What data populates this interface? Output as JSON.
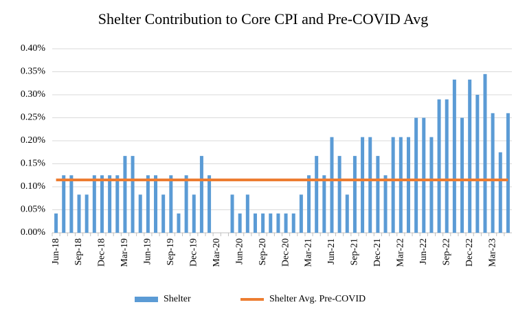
{
  "chart_data": {
    "type": "bar",
    "title": "Shelter Contribution to Core CPI and Pre-COVID Avg",
    "categories": [
      "Jun-18",
      null,
      null,
      "Sep-18",
      null,
      null,
      "Dec-18",
      null,
      null,
      "Mar-19",
      null,
      null,
      "Jun-19",
      null,
      null,
      "Sep-19",
      null,
      null,
      "Dec-19",
      null,
      null,
      "Mar-20",
      null,
      null,
      "Jun-20",
      null,
      null,
      "Sep-20",
      null,
      null,
      "Dec-20",
      null,
      null,
      "Mar-21",
      null,
      null,
      "Jun-21",
      null,
      null,
      "Sep-21",
      null,
      null,
      "Dec-21",
      null,
      null,
      "Mar-22",
      null,
      null,
      "Jun-22",
      null,
      null,
      "Sep-22",
      null,
      null,
      "Dec-22",
      null,
      null,
      "Mar-23",
      null,
      null
    ],
    "series": [
      {
        "name": "Shelter",
        "color": "#5b9bd5",
        "values": [
          0.042,
          0.125,
          0.125,
          0.083,
          0.083,
          0.125,
          0.125,
          0.125,
          0.125,
          0.167,
          0.167,
          0.083,
          0.125,
          0.125,
          0.083,
          0.125,
          0.042,
          0.125,
          0.083,
          0.167,
          0.125,
          0,
          0,
          0.083,
          0.042,
          0.083,
          0.042,
          0.042,
          0.042,
          0.042,
          0.042,
          0.042,
          0.083,
          0.125,
          0.167,
          0.125,
          0.208,
          0.167,
          0.083,
          0.167,
          0.208,
          0.208,
          0.167,
          0.125,
          0.208,
          0.208,
          0.208,
          0.25,
          0.25,
          0.208,
          0.29,
          0.29,
          0.333,
          0.25,
          0.333,
          0.3,
          0.345,
          0.26,
          0.175,
          0.26
        ]
      },
      {
        "name": "Shelter Avg. Pre-COVID",
        "color": "#ed7d31",
        "type": "line",
        "values": [
          0.115,
          0.115,
          0.115,
          0.115,
          0.115,
          0.115,
          0.115,
          0.115,
          0.115,
          0.115,
          0.115,
          0.115,
          0.115,
          0.115,
          0.115,
          0.115,
          0.115,
          0.115,
          0.115,
          0.115,
          0.115,
          0.115,
          0.115,
          0.115,
          0.115,
          0.115,
          0.115,
          0.115,
          0.115,
          0.115,
          0.115,
          0.115,
          0.115,
          0.115,
          0.115,
          0.115,
          0.115,
          0.115,
          0.115,
          0.115,
          0.115,
          0.115,
          0.115,
          0.115,
          0.115,
          0.115,
          0.115,
          0.115,
          0.115,
          0.115,
          0.115,
          0.115,
          0.115,
          0.115,
          0.115,
          0.115,
          0.115,
          0.115,
          0.115,
          0.115
        ]
      }
    ],
    "ylim": [
      0,
      0.4
    ],
    "yticks": [
      {
        "value": 0,
        "label": "0.00%"
      },
      {
        "value": 0.05,
        "label": "0.05%"
      },
      {
        "value": 0.1,
        "label": "0.10%"
      },
      {
        "value": 0.15,
        "label": "0.15%"
      },
      {
        "value": 0.2,
        "label": "0.20%"
      },
      {
        "value": 0.25,
        "label": "0.25%"
      },
      {
        "value": 0.3,
        "label": "0.30%"
      },
      {
        "value": 0.35,
        "label": "0.35%"
      },
      {
        "value": 0.4,
        "label": "0.40%"
      }
    ],
    "grid": true,
    "legend": "bottom"
  }
}
